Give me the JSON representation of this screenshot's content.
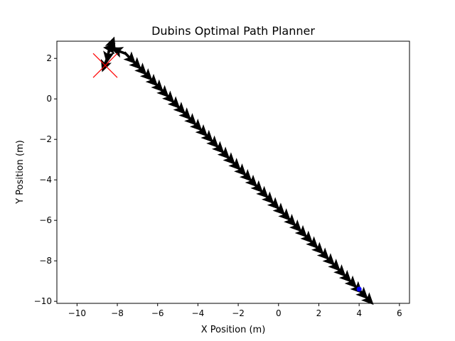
{
  "chart_data": {
    "type": "quiver",
    "title": "Dubins Optimal Path Planner",
    "xlabel": "X Position (m)",
    "ylabel": "Y Position (m)",
    "xlim": [
      -11,
      6.5
    ],
    "ylim": [
      -10.1,
      2.85
    ],
    "x_ticks": [
      -10,
      -8,
      -6,
      -4,
      -2,
      0,
      2,
      4,
      6
    ],
    "y_ticks": [
      -10,
      -8,
      -6,
      -4,
      -2,
      0,
      2
    ],
    "x_tick_labels": [
      "−10",
      "−8",
      "−6",
      "−4",
      "−2",
      "0",
      "2",
      "4",
      "6"
    ],
    "y_tick_labels": [
      "−10",
      "−8",
      "−6",
      "−4",
      "−2",
      "0",
      "2"
    ],
    "grid": false,
    "start": {
      "x": 4.0,
      "y": -9.4,
      "color": "#0000ff"
    },
    "goal": {
      "x": -8.6,
      "y": 1.65,
      "color": "#ff0000",
      "marker": "x"
    },
    "arrow_color": "#000000",
    "path": {
      "straight_start": {
        "x": 4.4,
        "y": -9.85
      },
      "straight_end": {
        "x": -7.4,
        "y": 2.05
      },
      "straight_count": 44,
      "turn_points": [
        {
          "x": -7.9,
          "y": 2.35,
          "heading_deg": 160
        },
        {
          "x": -8.25,
          "y": 2.5,
          "heading_deg": 175
        },
        {
          "x": -8.45,
          "y": 2.2,
          "heading_deg": 260
        },
        {
          "x": -8.3,
          "y": 2.65,
          "heading_deg": 70
        },
        {
          "x": -8.6,
          "y": 1.75,
          "heading_deg": 250
        }
      ]
    }
  }
}
